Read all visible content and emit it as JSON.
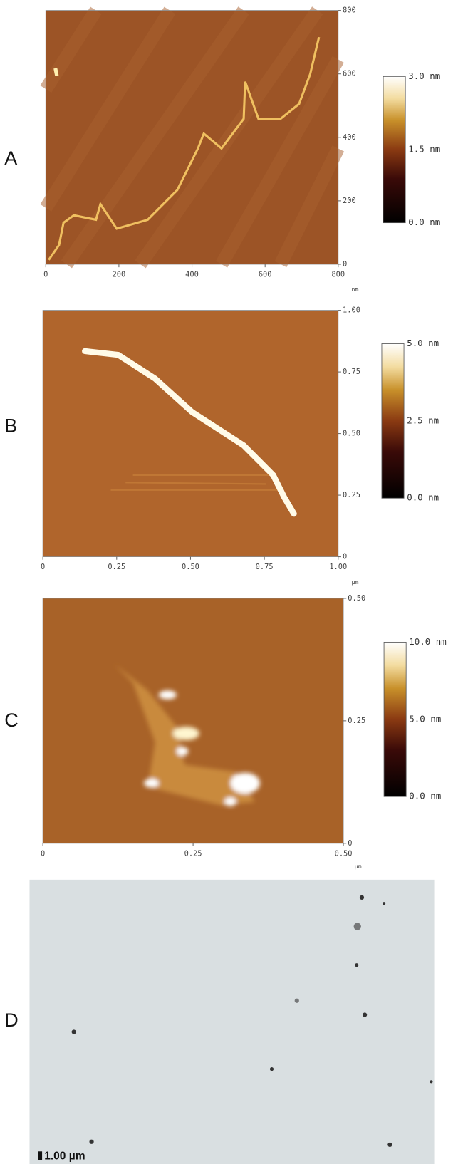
{
  "panels": [
    {
      "label": "A",
      "x_ticks": [
        "0",
        "200",
        "400",
        "600",
        "800"
      ],
      "y_ticks": [
        "800",
        "600",
        "400",
        "200",
        "0"
      ],
      "unit": "nm",
      "colorbar": [
        "3.0 nm",
        "1.5 nm",
        "0.0 nm"
      ]
    },
    {
      "label": "B",
      "x_ticks": [
        "0",
        "0.25",
        "0.50",
        "0.75",
        "1.00"
      ],
      "y_ticks": [
        "1.00",
        "0.75",
        "0.50",
        "0.25",
        "0"
      ],
      "unit": "µm",
      "colorbar": [
        "5.0 nm",
        "2.5 nm",
        "0.0 nm"
      ]
    },
    {
      "label": "C",
      "x_ticks": [
        "0",
        "0.25",
        "0.50"
      ],
      "y_ticks": [
        "0.50",
        "0.25",
        "0"
      ],
      "unit": "µm",
      "colorbar": [
        "10.0 nm",
        "5.0 nm",
        "0.0 nm"
      ]
    },
    {
      "label": "D",
      "scale_bar": "1.00 µm"
    }
  ]
}
